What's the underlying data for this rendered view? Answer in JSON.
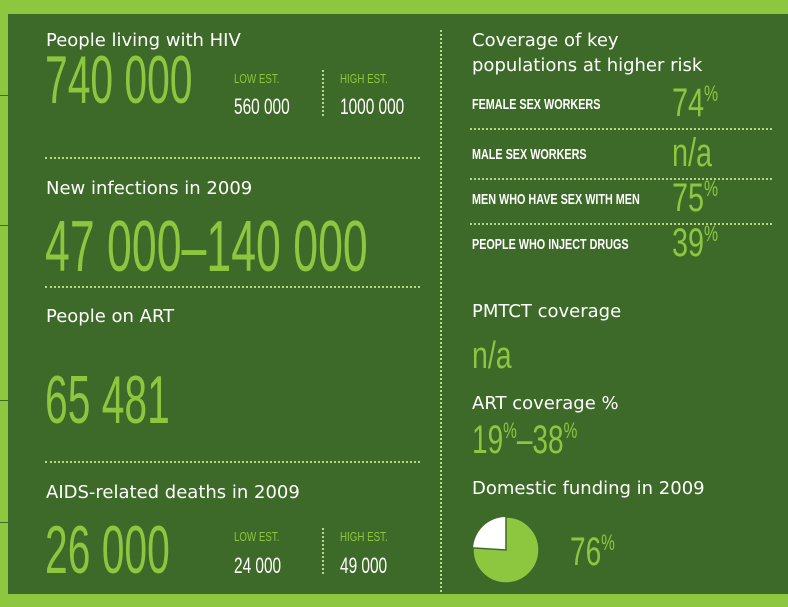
{
  "people_living": {
    "label": "People living with HIV",
    "value": "740 000",
    "low_label": "LOW EST.",
    "low": "560 000",
    "high_label": "HIGH EST.",
    "high": "1000 000"
  },
  "new_infections": {
    "label": "New infections in 2009",
    "value": "47 000–140 000"
  },
  "on_art": {
    "label": "People on ART",
    "value": "65 481"
  },
  "deaths": {
    "label": "AIDS-related deaths in 2009",
    "value": "26 000",
    "low_label": "LOW EST.",
    "low": "24 000",
    "high_label": "HIGH EST.",
    "high": "49 000"
  },
  "key_populations": {
    "title_lines": [
      "Coverage of key",
      "populations at higher risk"
    ],
    "rows": [
      {
        "group": "FEMALE SEX WORKERS",
        "value": 74,
        "unit": "%"
      },
      {
        "group": "MALE SEX WORKERS",
        "value": "n/a"
      },
      {
        "group": "MEN WHO HAVE SEX WITH MEN",
        "value": 75,
        "unit": "%"
      },
      {
        "group": "PEOPLE WHO INJECT DRUGS",
        "value": 39,
        "unit": "%"
      }
    ]
  },
  "pmtct": {
    "label": "PMTCT coverage",
    "value": "n/a"
  },
  "art_coverage": {
    "label": "ART coverage %",
    "low": 19,
    "high": 38,
    "unit": "%",
    "separator": "–"
  },
  "domestic_funding": {
    "label": "Domestic funding in 2009",
    "value": 76,
    "unit": "%"
  }
}
